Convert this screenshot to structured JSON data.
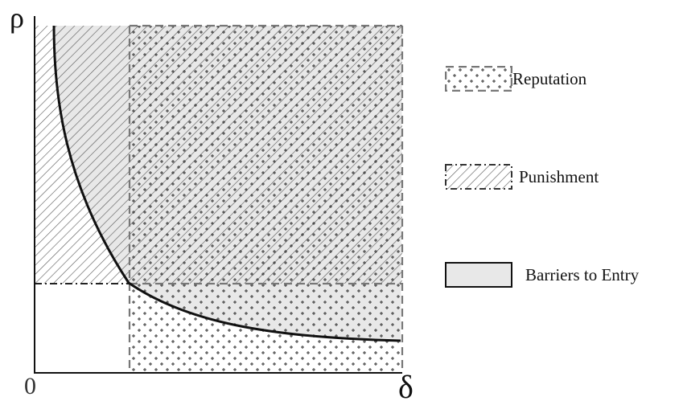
{
  "axes": {
    "y_label": "ρ",
    "x_label": "δ",
    "origin_label": "0"
  },
  "legend": {
    "items": [
      {
        "key": "reputation",
        "label": "Reputation",
        "pattern": "dotted-plus",
        "border": "dashed"
      },
      {
        "key": "punishment",
        "label": "Punishment",
        "pattern": "diagonal-hatch",
        "border": "dash-dot"
      },
      {
        "key": "barriers",
        "label": "Barriers to Entry",
        "pattern": "solid-gray",
        "border": "solid"
      }
    ]
  },
  "colors": {
    "barrier_fill": "#e8e8e8",
    "hatch": "#555555",
    "dots": "#333333",
    "curve": "#111111",
    "dashed_line": "#777777"
  }
}
